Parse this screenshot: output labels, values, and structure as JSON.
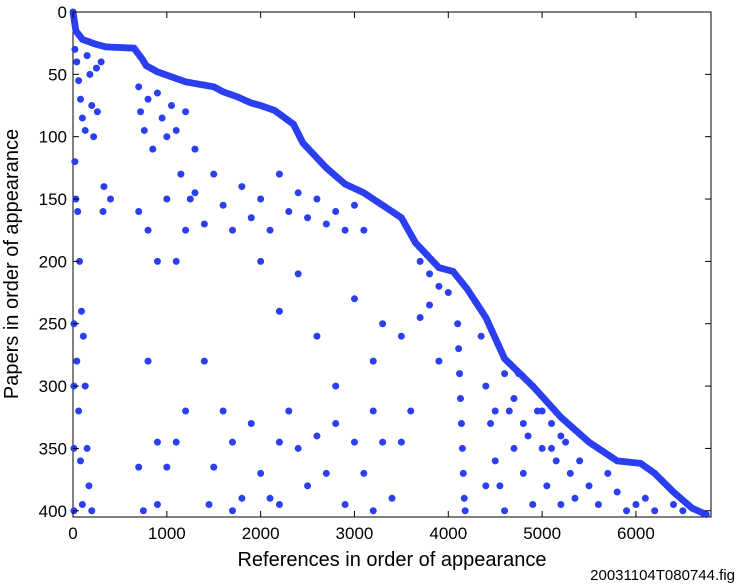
{
  "chart_data": {
    "type": "scatter",
    "title": "",
    "xlabel": "References in order of appearance",
    "ylabel": "Papers in order of appearance",
    "xlim": [
      0,
      6800
    ],
    "ylim": [
      405,
      0
    ],
    "y_reversed": true,
    "grid": false,
    "x_ticks": [
      "0",
      "1000",
      "2000",
      "3000",
      "4000",
      "5000",
      "6000"
    ],
    "y_ticks": [
      "0",
      "50",
      "100",
      "150",
      "200",
      "250",
      "300",
      "350",
      "400"
    ],
    "marker_color": "#2b3ff0",
    "frontier": [
      [
        0,
        0
      ],
      [
        30,
        15
      ],
      [
        100,
        22
      ],
      [
        250,
        26
      ],
      [
        350,
        28
      ],
      [
        650,
        29
      ],
      [
        740,
        38
      ],
      [
        780,
        43
      ],
      [
        900,
        48
      ],
      [
        1050,
        52
      ],
      [
        1200,
        56
      ],
      [
        1500,
        60
      ],
      [
        1600,
        64
      ],
      [
        1750,
        68
      ],
      [
        1900,
        73
      ],
      [
        2000,
        75
      ],
      [
        2150,
        79
      ],
      [
        2350,
        90
      ],
      [
        2450,
        105
      ],
      [
        2700,
        125
      ],
      [
        2900,
        138
      ],
      [
        3100,
        145
      ],
      [
        3400,
        160
      ],
      [
        3500,
        165
      ],
      [
        3650,
        185
      ],
      [
        3900,
        205
      ],
      [
        4050,
        208
      ],
      [
        4200,
        222
      ],
      [
        4400,
        245
      ],
      [
        4600,
        278
      ],
      [
        4900,
        300
      ],
      [
        5200,
        325
      ],
      [
        5500,
        345
      ],
      [
        5800,
        360
      ],
      [
        6050,
        362
      ],
      [
        6200,
        370
      ],
      [
        6400,
        385
      ],
      [
        6600,
        398
      ],
      [
        6750,
        403
      ]
    ],
    "points": [
      [
        20,
        30
      ],
      [
        40,
        40
      ],
      [
        60,
        55
      ],
      [
        80,
        70
      ],
      [
        100,
        85
      ],
      [
        130,
        95
      ],
      [
        150,
        35
      ],
      [
        180,
        50
      ],
      [
        200,
        75
      ],
      [
        220,
        100
      ],
      [
        250,
        45
      ],
      [
        260,
        80
      ],
      [
        20,
        120
      ],
      [
        30,
        150
      ],
      [
        50,
        160
      ],
      [
        70,
        200
      ],
      [
        90,
        240
      ],
      [
        110,
        260
      ],
      [
        130,
        300
      ],
      [
        150,
        350
      ],
      [
        170,
        380
      ],
      [
        200,
        400
      ],
      [
        40,
        280
      ],
      [
        60,
        320
      ],
      [
        80,
        360
      ],
      [
        100,
        395
      ],
      [
        10,
        250
      ],
      [
        10,
        300
      ],
      [
        10,
        350
      ],
      [
        10,
        400
      ],
      [
        300,
        40
      ],
      [
        320,
        160
      ],
      [
        330,
        140
      ],
      [
        400,
        150
      ],
      [
        700,
        60
      ],
      [
        720,
        80
      ],
      [
        760,
        95
      ],
      [
        800,
        70
      ],
      [
        850,
        110
      ],
      [
        900,
        65
      ],
      [
        950,
        85
      ],
      [
        1000,
        100
      ],
      [
        1050,
        75
      ],
      [
        1100,
        95
      ],
      [
        1150,
        130
      ],
      [
        1200,
        80
      ],
      [
        1250,
        150
      ],
      [
        1300,
        110
      ],
      [
        700,
        160
      ],
      [
        800,
        175
      ],
      [
        900,
        200
      ],
      [
        1000,
        150
      ],
      [
        1100,
        200
      ],
      [
        1200,
        175
      ],
      [
        1300,
        145
      ],
      [
        1400,
        170
      ],
      [
        1500,
        130
      ],
      [
        1600,
        155
      ],
      [
        1700,
        175
      ],
      [
        1800,
        140
      ],
      [
        1900,
        165
      ],
      [
        2000,
        150
      ],
      [
        2100,
        175
      ],
      [
        2200,
        130
      ],
      [
        2300,
        160
      ],
      [
        2400,
        145
      ],
      [
        2500,
        165
      ],
      [
        2600,
        150
      ],
      [
        2700,
        170
      ],
      [
        2800,
        160
      ],
      [
        2900,
        175
      ],
      [
        3000,
        155
      ],
      [
        3100,
        175
      ],
      [
        800,
        280
      ],
      [
        900,
        345
      ],
      [
        1000,
        365
      ],
      [
        1100,
        345
      ],
      [
        1200,
        320
      ],
      [
        1400,
        280
      ],
      [
        1500,
        365
      ],
      [
        1600,
        320
      ],
      [
        1700,
        345
      ],
      [
        1800,
        390
      ],
      [
        1900,
        330
      ],
      [
        2000,
        370
      ],
      [
        2100,
        390
      ],
      [
        2200,
        345
      ],
      [
        2300,
        320
      ],
      [
        2400,
        350
      ],
      [
        2500,
        380
      ],
      [
        2600,
        340
      ],
      [
        2700,
        370
      ],
      [
        2800,
        330
      ],
      [
        2900,
        395
      ],
      [
        3000,
        345
      ],
      [
        3100,
        370
      ],
      [
        3200,
        320
      ],
      [
        3300,
        345
      ],
      [
        3400,
        390
      ],
      [
        3500,
        345
      ],
      [
        3600,
        320
      ],
      [
        700,
        365
      ],
      [
        750,
        400
      ],
      [
        900,
        395
      ],
      [
        1450,
        395
      ],
      [
        1700,
        400
      ],
      [
        2200,
        395
      ],
      [
        3200,
        400
      ],
      [
        2000,
        200
      ],
      [
        2200,
        240
      ],
      [
        2400,
        210
      ],
      [
        2600,
        260
      ],
      [
        2800,
        300
      ],
      [
        3000,
        230
      ],
      [
        3200,
        280
      ],
      [
        3300,
        250
      ],
      [
        3500,
        260
      ],
      [
        3700,
        245
      ],
      [
        3800,
        235
      ],
      [
        3900,
        280
      ],
      [
        3700,
        200
      ],
      [
        3800,
        210
      ],
      [
        3900,
        220
      ],
      [
        4000,
        225
      ],
      [
        4100,
        250
      ],
      [
        4110,
        270
      ],
      [
        4120,
        290
      ],
      [
        4130,
        310
      ],
      [
        4140,
        330
      ],
      [
        4150,
        350
      ],
      [
        4160,
        370
      ],
      [
        4170,
        390
      ],
      [
        4180,
        400
      ],
      [
        4350,
        260
      ],
      [
        4400,
        300
      ],
      [
        4450,
        330
      ],
      [
        4500,
        360
      ],
      [
        4550,
        380
      ],
      [
        4600,
        400
      ],
      [
        4650,
        320
      ],
      [
        4700,
        350
      ],
      [
        4750,
        290
      ],
      [
        4800,
        370
      ],
      [
        4850,
        340
      ],
      [
        4900,
        395
      ],
      [
        4950,
        320
      ],
      [
        5000,
        350
      ],
      [
        5050,
        380
      ],
      [
        5100,
        330
      ],
      [
        5150,
        360
      ],
      [
        5200,
        395
      ],
      [
        5250,
        345
      ],
      [
        5300,
        370
      ],
      [
        5350,
        390
      ],
      [
        5400,
        360
      ],
      [
        5500,
        380
      ],
      [
        5600,
        395
      ],
      [
        5700,
        370
      ],
      [
        5800,
        385
      ],
      [
        5900,
        400
      ],
      [
        6000,
        395
      ],
      [
        6100,
        390
      ],
      [
        6200,
        400
      ],
      [
        6400,
        395
      ],
      [
        6500,
        400
      ],
      [
        4400,
        380
      ],
      [
        4500,
        320
      ],
      [
        4600,
        290
      ],
      [
        4700,
        310
      ],
      [
        4800,
        330
      ],
      [
        4900,
        300
      ],
      [
        5000,
        320
      ],
      [
        5100,
        350
      ],
      [
        5200,
        340
      ]
    ],
    "figure_id": "20031104T080744.fig"
  }
}
